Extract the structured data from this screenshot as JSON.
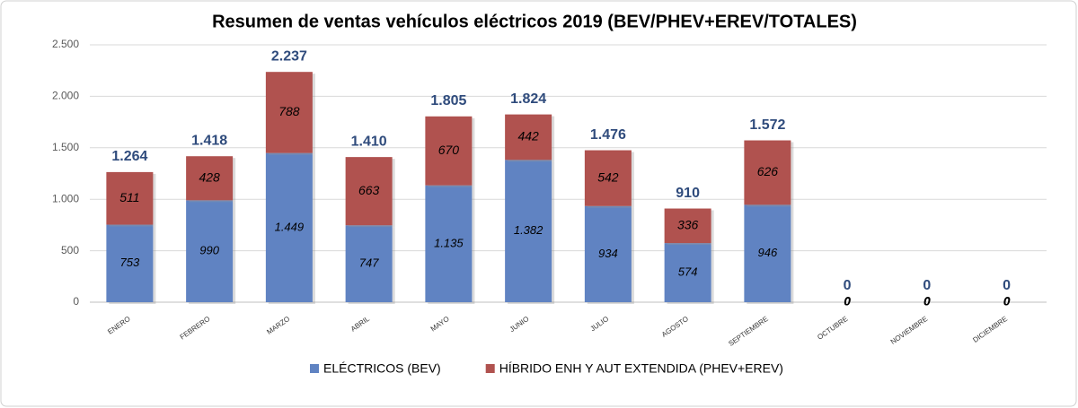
{
  "chart_data": {
    "type": "stacked_bar",
    "title": "Resumen de ventas vehículos eléctricos 2019 (BEV/PHEV+EREV/TOTALES)",
    "categories": [
      "ENERO",
      "FEBRERO",
      "MARZO",
      "ABRIL",
      "MAYO",
      "JUNIO",
      "JULIO",
      "AGOSTO",
      "SEPTIEMBRE",
      "OCTUBRE",
      "NOVIEMBRE",
      "DICIEMBRE"
    ],
    "series": [
      {
        "name": "ELÉCTRICOS (BEV)",
        "color": "#6083c2",
        "values": [
          753,
          990,
          1449,
          747,
          1135,
          1382,
          934,
          574,
          946,
          0,
          0,
          0
        ],
        "value_labels": [
          "753",
          "990",
          "1.449",
          "747",
          "1.135",
          "1.382",
          "934",
          "574",
          "946",
          "0",
          "0",
          "0"
        ]
      },
      {
        "name": "HÍBRIDO ENH Y AUT EXTENDIDA (PHEV+EREV)",
        "color": "#b0524f",
        "values": [
          511,
          428,
          788,
          663,
          670,
          442,
          542,
          336,
          626,
          0,
          0,
          0
        ],
        "value_labels": [
          "511",
          "428",
          "788",
          "663",
          "670",
          "442",
          "542",
          "336",
          "626",
          "0",
          "0",
          "0"
        ]
      }
    ],
    "totals": {
      "values": [
        1264,
        1418,
        2237,
        1410,
        1805,
        1824,
        1476,
        910,
        1572,
        0,
        0,
        0
      ],
      "value_labels": [
        "1.264",
        "1.418",
        "2.237",
        "1.410",
        "1.805",
        "1.824",
        "1.476",
        "910",
        "1.572",
        "0",
        "0",
        "0"
      ]
    },
    "ylim": [
      0,
      2500
    ],
    "yticks": [
      0,
      500,
      {
        "value": 1000,
        "label": "1.000"
      },
      {
        "value": 1500,
        "label": "1.500"
      },
      {
        "value": 2000,
        "label": "2.000"
      },
      {
        "value": 2500,
        "label": "2.500"
      }
    ],
    "grid": true,
    "legend": "bottom"
  }
}
